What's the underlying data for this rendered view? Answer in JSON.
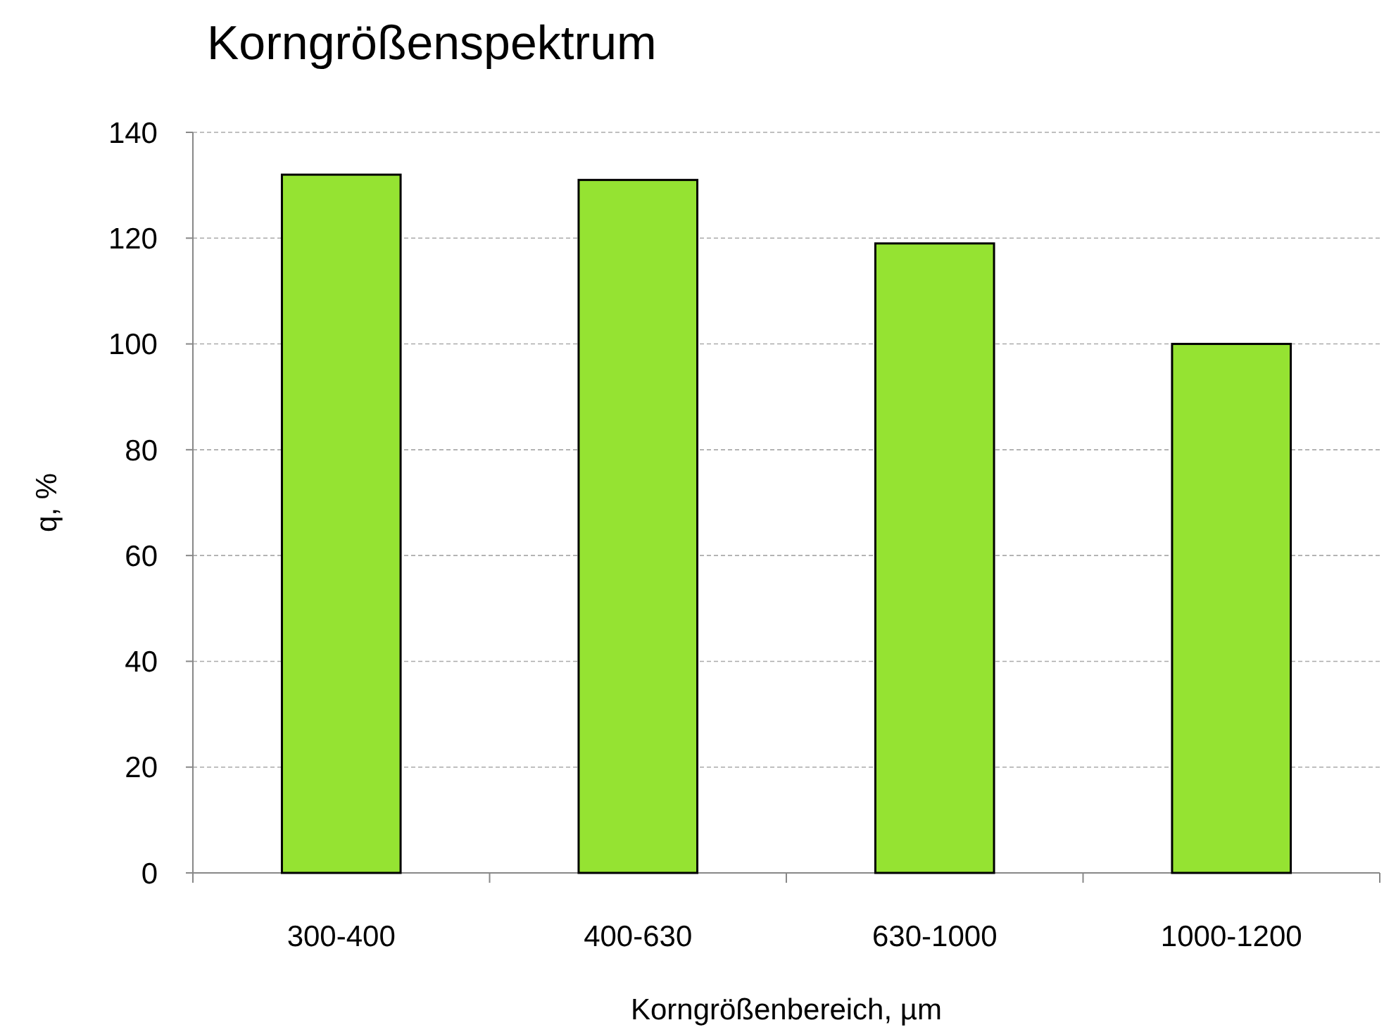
{
  "chart_data": {
    "type": "bar",
    "title": "Korngrößenspektrum",
    "xlabel": "Korngrößenbereich, µm",
    "ylabel": "q, %",
    "categories": [
      "300-400",
      "400-630",
      "630-1000",
      "1000-1200"
    ],
    "values": [
      132,
      131,
      119,
      100
    ],
    "color": "#95e332",
    "ylim": [
      0,
      140
    ],
    "yticks": [
      0,
      20,
      40,
      60,
      80,
      100,
      120,
      140
    ],
    "grid": "y"
  }
}
